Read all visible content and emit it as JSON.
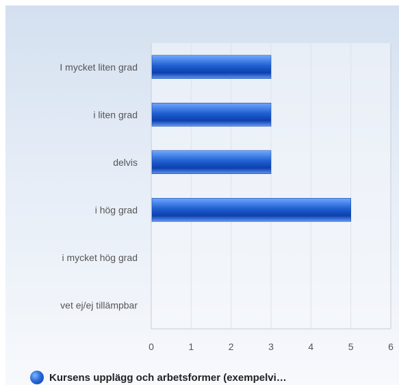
{
  "chart_data": {
    "type": "bar",
    "orientation": "horizontal",
    "categories": [
      "I mycket liten grad",
      "i liten grad",
      "delvis",
      "i hög grad",
      "i mycket hög grad",
      "vet ej/ej tillämpbar"
    ],
    "series": [
      {
        "name": "Kursens upplägg och arbetsformer (exempelvi…",
        "values": [
          3,
          3,
          3,
          5,
          0,
          0
        ],
        "color": "#1f5fd0"
      }
    ],
    "xlim": [
      0,
      6
    ],
    "x_ticks": [
      "0",
      "1",
      "2",
      "3",
      "4",
      "5",
      "6"
    ],
    "grid": true,
    "legend_position": "bottom-left"
  }
}
